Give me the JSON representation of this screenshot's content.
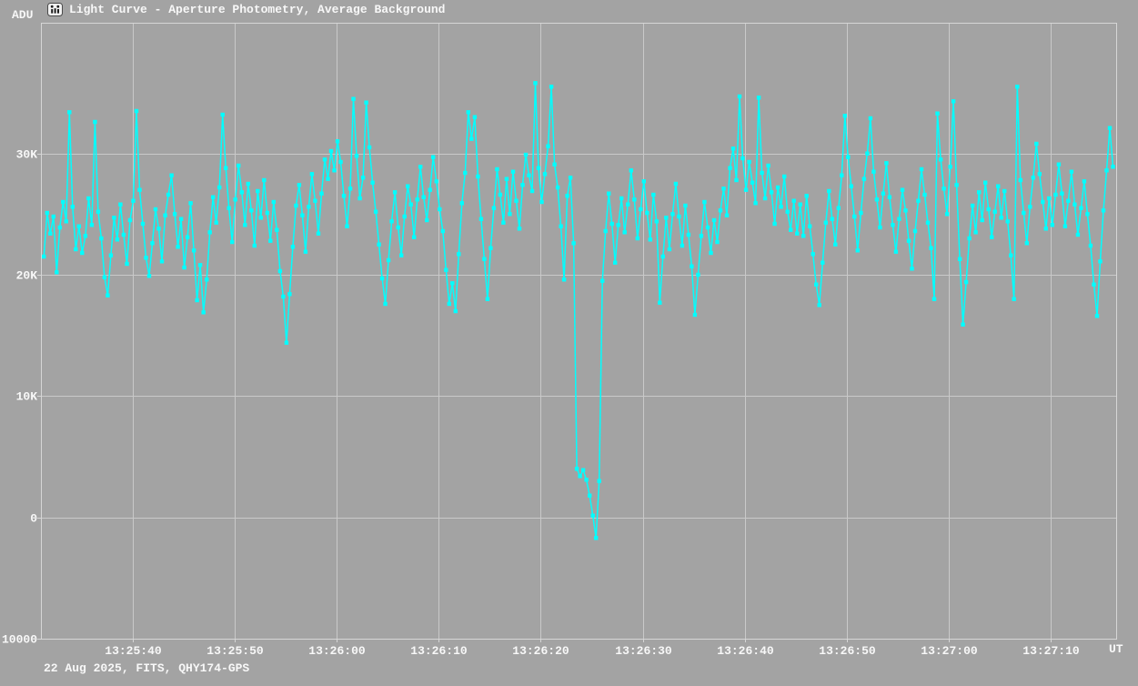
{
  "header": {
    "y_axis_unit": "ADU",
    "title": "Light Curve - Aperture Photometry, Average Background",
    "app_icon": "tangra-logo-icon"
  },
  "footer": {
    "info": "22 Aug 2025, FITS, QHY174-GPS",
    "x_axis_unit": "UT"
  },
  "colors": {
    "background": "#a3a3a3",
    "grid": "#c9c9c9",
    "border": "#d6d6d6",
    "text": "#f8f8f8",
    "series": "#00ffff"
  },
  "chart_data": {
    "type": "line",
    "title": "Light Curve - Aperture Photometry, Average Background",
    "xlabel": "UT",
    "ylabel": "ADU",
    "legend": "none",
    "grid": "on",
    "time_ref": "13:25:40",
    "xlim_s": [
      -8.9,
      96.4
    ],
    "ylim": [
      -10000,
      40700
    ],
    "x_ticks": [
      {
        "t": 0,
        "label": "13:25:40"
      },
      {
        "t": 10,
        "label": "13:25:50"
      },
      {
        "t": 20,
        "label": "13:26:00"
      },
      {
        "t": 30,
        "label": "13:26:10"
      },
      {
        "t": 40,
        "label": "13:26:20"
      },
      {
        "t": 50,
        "label": "13:26:30"
      },
      {
        "t": 60,
        "label": "13:26:40"
      },
      {
        "t": 70,
        "label": "13:26:50"
      },
      {
        "t": 80,
        "label": "13:27:00"
      },
      {
        "t": 90,
        "label": "13:27:10"
      }
    ],
    "y_ticks": [
      {
        "v": 30000,
        "label": "30K"
      },
      {
        "v": 20000,
        "label": "20K"
      },
      {
        "v": 10000,
        "label": "10K"
      },
      {
        "v": 0,
        "label": "0"
      },
      {
        "v": -10000,
        "label": "-10000"
      }
    ],
    "t_start_s": -8.7,
    "dt_s": 0.3128,
    "event_note": "deep occultation drop to ~-1700 ADU near 13:26:24-13:26:25",
    "values_adu": [
      21500,
      25100,
      23400,
      24800,
      20200,
      23900,
      26000,
      24400,
      33400,
      25600,
      22100,
      24000,
      21800,
      23200,
      26300,
      24100,
      32600,
      25200,
      23000,
      19800,
      18300,
      21600,
      24700,
      22900,
      25800,
      23300,
      20900,
      24500,
      26100,
      33500,
      27000,
      24200,
      21400,
      19900,
      22600,
      25400,
      23800,
      21100,
      24900,
      26600,
      28200,
      25000,
      22300,
      24600,
      20600,
      23100,
      25900,
      22000,
      17900,
      20800,
      16900,
      19600,
      23500,
      26400,
      24300,
      27200,
      33200,
      28800,
      25500,
      22700,
      26200,
      29000,
      26800,
      24100,
      27500,
      25300,
      22400,
      26900,
      24700,
      27800,
      25100,
      22800,
      26000,
      23700,
      20300,
      18200,
      14400,
      18400,
      22300,
      25700,
      27400,
      24900,
      21900,
      25600,
      28300,
      26100,
      23400,
      26700,
      29500,
      27900,
      30200,
      28600,
      31000,
      29300,
      26500,
      24000,
      27100,
      34500,
      29800,
      26300,
      28000,
      34200,
      30500,
      27600,
      25200,
      22500,
      19700,
      17600,
      21200,
      24400,
      26800,
      23900,
      21600,
      24800,
      27300,
      25800,
      23100,
      26200,
      28900,
      26400,
      24500,
      27000,
      29700,
      27700,
      25400,
      23600,
      20400,
      17600,
      19300,
      17000,
      21700,
      25900,
      28400,
      33400,
      31200,
      33000,
      28100,
      24600,
      21300,
      18000,
      22200,
      25500,
      28700,
      26600,
      24300,
      27900,
      25000,
      28500,
      26100,
      23800,
      27400,
      29900,
      28200,
      26900,
      35800,
      28800,
      26000,
      28300,
      30600,
      35500,
      29100,
      27200,
      24000,
      19600,
      26500,
      28000,
      22600,
      4000,
      3400,
      3900,
      3100,
      1800,
      150,
      -1700,
      3000,
      19500,
      23600,
      26700,
      24200,
      21000,
      24100,
      26300,
      23500,
      25800,
      28600,
      26200,
      23000,
      25400,
      27700,
      25100,
      22900,
      26600,
      24400,
      17700,
      21500,
      24700,
      22100,
      25000,
      27500,
      24800,
      22400,
      25700,
      23300,
      20700,
      16700,
      20000,
      23200,
      26000,
      23900,
      21800,
      24500,
      22700,
      25300,
      27100,
      24900,
      28800,
      30400,
      27800,
      34700,
      29600,
      27000,
      29300,
      27600,
      25900,
      34600,
      28400,
      26300,
      29000,
      26800,
      24200,
      27200,
      25600,
      28100,
      25200,
      23700,
      26100,
      23400,
      25800,
      23200,
      26500,
      24000,
      21700,
      19200,
      17500,
      21000,
      24300,
      26900,
      24600,
      22500,
      25500,
      28200,
      33100,
      29700,
      27300,
      24800,
      22000,
      25100,
      27900,
      30000,
      32900,
      28500,
      26200,
      23900,
      26700,
      29200,
      26400,
      24100,
      21900,
      24600,
      27000,
      25300,
      22800,
      20500,
      23600,
      26100,
      28700,
      26600,
      24300,
      22200,
      18000,
      33300,
      29500,
      27100,
      25000,
      28900,
      34300,
      27400,
      21300,
      15900,
      19400,
      23000,
      25700,
      23500,
      26800,
      24500,
      27600,
      25400,
      23100,
      25200,
      27300,
      24700,
      26900,
      24400,
      21600,
      18000,
      35500,
      27800,
      25100,
      22600,
      25600,
      28000,
      30800,
      28300,
      26000,
      23800,
      26300,
      24100,
      26600,
      29100,
      26700,
      24000,
      26100,
      28500,
      25800,
      23300,
      25500,
      27700,
      25000,
      22400,
      19200,
      16600,
      21100,
      25300,
      28600,
      32100,
      28900
    ]
  }
}
